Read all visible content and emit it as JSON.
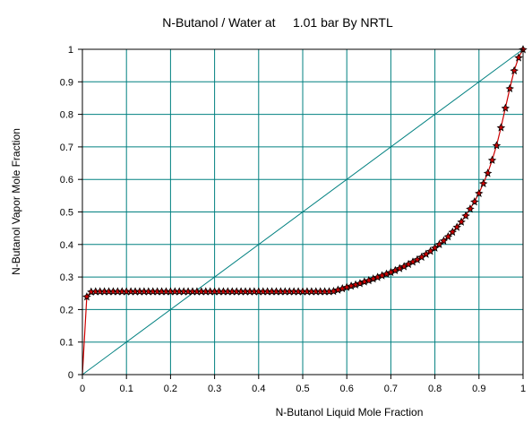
{
  "chart_data": {
    "type": "line",
    "title": "N-Butanol / Water at     1.01 bar By NRTL",
    "xlabel": "N-Butanol Liquid Mole Fraction",
    "ylabel": "N-Butanol Vapor Mole Fraction",
    "xlim": [
      0,
      1
    ],
    "ylim": [
      0,
      1
    ],
    "x_ticks": [
      "0",
      "0.1",
      "0.2",
      "0.3",
      "0.4",
      "0.5",
      "0.6",
      "0.7",
      "0.8",
      "0.9",
      "1"
    ],
    "y_ticks": [
      "0",
      "0.1",
      "0.2",
      "0.3",
      "0.4",
      "0.5",
      "0.6",
      "0.7",
      "0.8",
      "0.9",
      "1"
    ],
    "grid": true,
    "colors": {
      "grid": "#008080",
      "diagonal": "#008080",
      "curve": "#cc0000",
      "marker": "#000000"
    },
    "series": [
      {
        "values": [
          [
            0.0,
            0.0
          ],
          [
            0.01,
            0.24
          ],
          [
            0.02,
            0.255
          ],
          [
            0.03,
            0.256
          ],
          [
            0.04,
            0.256
          ],
          [
            0.05,
            0.256
          ],
          [
            0.06,
            0.256
          ],
          [
            0.07,
            0.256
          ],
          [
            0.08,
            0.256
          ],
          [
            0.09,
            0.256
          ],
          [
            0.1,
            0.256
          ],
          [
            0.11,
            0.256
          ],
          [
            0.12,
            0.256
          ],
          [
            0.13,
            0.256
          ],
          [
            0.14,
            0.256
          ],
          [
            0.15,
            0.256
          ],
          [
            0.16,
            0.256
          ],
          [
            0.17,
            0.256
          ],
          [
            0.18,
            0.256
          ],
          [
            0.19,
            0.256
          ],
          [
            0.2,
            0.256
          ],
          [
            0.21,
            0.256
          ],
          [
            0.22,
            0.256
          ],
          [
            0.23,
            0.256
          ],
          [
            0.24,
            0.256
          ],
          [
            0.25,
            0.256
          ],
          [
            0.26,
            0.256
          ],
          [
            0.27,
            0.256
          ],
          [
            0.28,
            0.256
          ],
          [
            0.29,
            0.256
          ],
          [
            0.3,
            0.256
          ],
          [
            0.31,
            0.256
          ],
          [
            0.32,
            0.256
          ],
          [
            0.33,
            0.256
          ],
          [
            0.34,
            0.256
          ],
          [
            0.35,
            0.256
          ],
          [
            0.36,
            0.256
          ],
          [
            0.37,
            0.256
          ],
          [
            0.38,
            0.256
          ],
          [
            0.39,
            0.256
          ],
          [
            0.4,
            0.256
          ],
          [
            0.41,
            0.256
          ],
          [
            0.42,
            0.256
          ],
          [
            0.43,
            0.256
          ],
          [
            0.44,
            0.256
          ],
          [
            0.45,
            0.256
          ],
          [
            0.46,
            0.256
          ],
          [
            0.47,
            0.256
          ],
          [
            0.48,
            0.256
          ],
          [
            0.49,
            0.256
          ],
          [
            0.5,
            0.256
          ],
          [
            0.51,
            0.256
          ],
          [
            0.52,
            0.256
          ],
          [
            0.53,
            0.256
          ],
          [
            0.54,
            0.256
          ],
          [
            0.55,
            0.256
          ],
          [
            0.56,
            0.256
          ],
          [
            0.57,
            0.257
          ],
          [
            0.58,
            0.261
          ],
          [
            0.59,
            0.265
          ],
          [
            0.6,
            0.269
          ],
          [
            0.61,
            0.273
          ],
          [
            0.62,
            0.277
          ],
          [
            0.63,
            0.281
          ],
          [
            0.64,
            0.286
          ],
          [
            0.65,
            0.29
          ],
          [
            0.66,
            0.295
          ],
          [
            0.67,
            0.3
          ],
          [
            0.68,
            0.305
          ],
          [
            0.69,
            0.31
          ],
          [
            0.7,
            0.315
          ],
          [
            0.71,
            0.321
          ],
          [
            0.72,
            0.327
          ],
          [
            0.73,
            0.333
          ],
          [
            0.74,
            0.34
          ],
          [
            0.75,
            0.347
          ],
          [
            0.76,
            0.354
          ],
          [
            0.77,
            0.362
          ],
          [
            0.78,
            0.371
          ],
          [
            0.79,
            0.38
          ],
          [
            0.8,
            0.39
          ],
          [
            0.81,
            0.401
          ],
          [
            0.82,
            0.412
          ],
          [
            0.83,
            0.425
          ],
          [
            0.84,
            0.439
          ],
          [
            0.85,
            0.454
          ],
          [
            0.86,
            0.47
          ],
          [
            0.87,
            0.489
          ],
          [
            0.88,
            0.51
          ],
          [
            0.89,
            0.532
          ],
          [
            0.9,
            0.558
          ],
          [
            0.91,
            0.588
          ],
          [
            0.92,
            0.62
          ],
          [
            0.93,
            0.66
          ],
          [
            0.94,
            0.705
          ],
          [
            0.95,
            0.76
          ],
          [
            0.96,
            0.82
          ],
          [
            0.97,
            0.88
          ],
          [
            0.98,
            0.935
          ],
          [
            0.99,
            0.975
          ],
          [
            1.0,
            1.0
          ]
        ]
      }
    ]
  }
}
